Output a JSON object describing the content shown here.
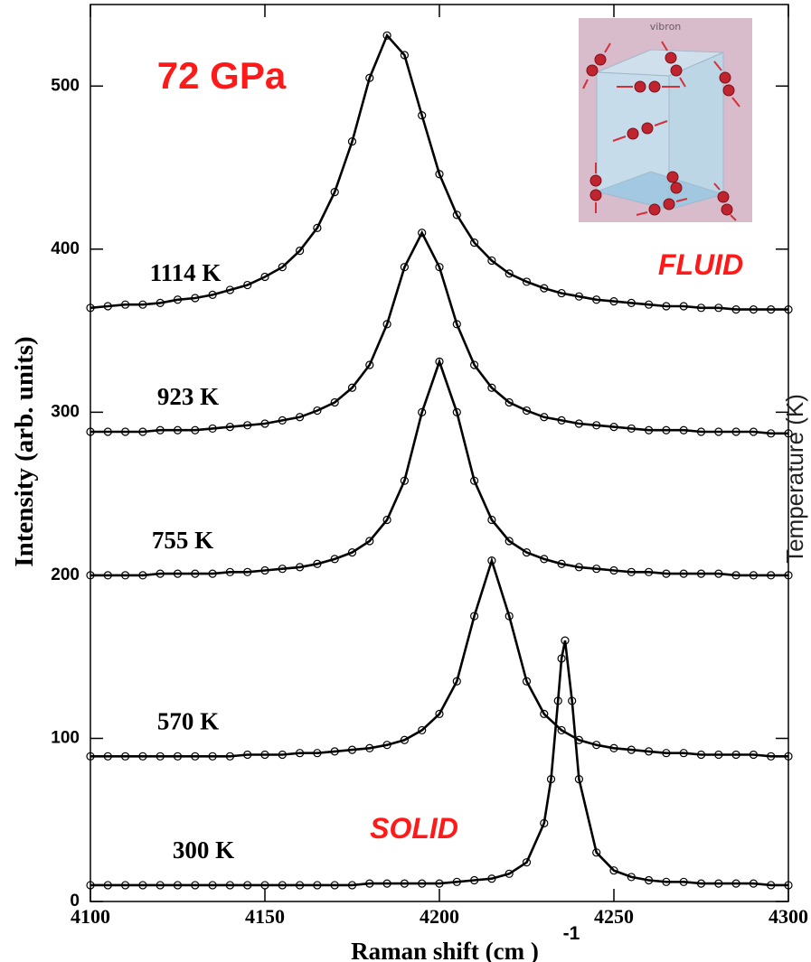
{
  "chart_data": {
    "type": "line",
    "markers": "circle",
    "title": "72 GPa",
    "xlabel": "Raman shift (cm )",
    "xlabel_superscript": "-1",
    "ylabel": "Intensity  (arb. units)",
    "y2label": "Temperature (K)",
    "annotations": [
      "FLUID",
      "SOLID"
    ],
    "inset_label": "vibron",
    "xlim": [
      4100,
      4300
    ],
    "xticks": [
      4100,
      4150,
      4200,
      4250,
      4300
    ],
    "ylim": [
      0,
      550
    ],
    "yticks": [
      0,
      100,
      200,
      300,
      400,
      500
    ],
    "x": [
      4100,
      4105,
      4110,
      4115,
      4120,
      4125,
      4130,
      4135,
      4140,
      4145,
      4150,
      4155,
      4160,
      4165,
      4170,
      4175,
      4180,
      4185,
      4190,
      4195,
      4200,
      4205,
      4210,
      4215,
      4220,
      4225,
      4230,
      4235,
      4240,
      4245,
      4250,
      4255,
      4260,
      4265,
      4270,
      4275,
      4280,
      4285,
      4290,
      4295,
      4300
    ],
    "series": [
      {
        "name": "1114 K",
        "color": "#000000",
        "values": [
          364,
          365,
          366,
          366,
          367,
          369,
          370,
          372,
          375,
          378,
          383,
          389,
          399,
          413,
          435,
          466,
          505,
          531,
          519,
          482,
          446,
          421,
          404,
          393,
          385,
          380,
          376,
          373,
          371,
          369,
          368,
          367,
          366,
          365,
          365,
          364,
          364,
          363,
          363,
          363,
          363
        ]
      },
      {
        "name": "923 K",
        "color": "#000000",
        "values": [
          288,
          288,
          288,
          288,
          289,
          289,
          289,
          290,
          291,
          292,
          293,
          295,
          297,
          301,
          306,
          315,
          329,
          354,
          389,
          410,
          389,
          354,
          329,
          315,
          306,
          301,
          297,
          295,
          293,
          292,
          291,
          290,
          289,
          289,
          289,
          288,
          288,
          288,
          288,
          287,
          287
        ]
      },
      {
        "name": "755 K",
        "color": "#000000",
        "values": [
          200,
          200,
          200,
          200,
          201,
          201,
          201,
          201,
          202,
          202,
          203,
          204,
          205,
          207,
          210,
          214,
          221,
          234,
          258,
          300,
          331,
          300,
          258,
          234,
          221,
          214,
          210,
          207,
          205,
          204,
          203,
          202,
          202,
          201,
          201,
          201,
          201,
          200,
          200,
          200,
          200
        ]
      },
      {
        "name": "570 K",
        "color": "#000000",
        "values": [
          89,
          89,
          89,
          89,
          89,
          89,
          89,
          89,
          89,
          90,
          90,
          90,
          91,
          91,
          92,
          93,
          94,
          96,
          99,
          105,
          115,
          135,
          175,
          209,
          175,
          135,
          115,
          105,
          99,
          96,
          94,
          93,
          92,
          91,
          91,
          90,
          90,
          90,
          90,
          89,
          89
        ]
      },
      {
        "name": "300 K",
        "color": "#000000",
        "x": [
          4100,
          4105,
          4110,
          4115,
          4120,
          4125,
          4130,
          4135,
          4140,
          4145,
          4150,
          4155,
          4160,
          4165,
          4170,
          4175,
          4180,
          4185,
          4190,
          4195,
          4200,
          4205,
          4210,
          4215,
          4220,
          4225,
          4230,
          4232,
          4234,
          4235,
          4236,
          4238,
          4240,
          4245,
          4250,
          4255,
          4260,
          4265,
          4270,
          4275,
          4280,
          4285,
          4290,
          4295,
          4300
        ],
        "values": [
          10,
          10,
          10,
          10,
          10,
          10,
          10,
          10,
          10,
          10,
          10,
          10,
          10,
          10,
          10,
          10,
          11,
          11,
          11,
          11,
          11,
          12,
          13,
          14,
          17,
          24,
          48,
          75,
          123,
          149,
          160,
          123,
          75,
          30,
          19,
          15,
          13,
          12,
          12,
          11,
          11,
          11,
          11,
          10,
          10
        ]
      }
    ]
  }
}
